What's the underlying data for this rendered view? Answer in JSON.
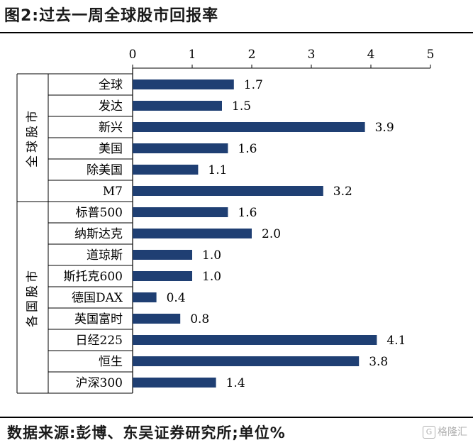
{
  "title": "图2:过去一周全球股市回报率",
  "source": "数据来源:彭博、东吴证券研究所;单位%",
  "watermark": {
    "icon": "G",
    "text": "格隆汇"
  },
  "chart_data": {
    "type": "bar",
    "orientation": "horizontal",
    "xlim": [
      0,
      5
    ],
    "xticks": [
      "0",
      "1",
      "2",
      "3",
      "4",
      "5"
    ],
    "xaxis_position": "top",
    "bar_color": "#1f3f73",
    "groups": [
      {
        "label": "全球股市",
        "categories": [
          "全球",
          "发达",
          "新兴",
          "美国",
          "除美国",
          "M7"
        ]
      },
      {
        "label": "各国股市",
        "categories": [
          "标普500",
          "纳斯达克",
          "道琼斯",
          "斯托克600",
          "德国DAX",
          "英国富时",
          "日经225",
          "恒生",
          "沪深300"
        ]
      }
    ],
    "categories": [
      "全球",
      "发达",
      "新兴",
      "美国",
      "除美国",
      "M7",
      "标普500",
      "纳斯达克",
      "道琼斯",
      "斯托克600",
      "德国DAX",
      "英国富时",
      "日经225",
      "恒生",
      "沪深300"
    ],
    "values": [
      1.7,
      1.5,
      3.9,
      1.6,
      1.1,
      3.2,
      1.6,
      2.0,
      1.0,
      1.0,
      0.4,
      0.8,
      4.1,
      3.8,
      1.4
    ],
    "value_labels": [
      "1.7",
      "1.5",
      "3.9",
      "1.6",
      "1.1",
      "3.2",
      "1.6",
      "2.0",
      "1.0",
      "1.0",
      "0.4",
      "0.8",
      "4.1",
      "3.8",
      "1.4"
    ],
    "grid": false,
    "legend": "none"
  }
}
